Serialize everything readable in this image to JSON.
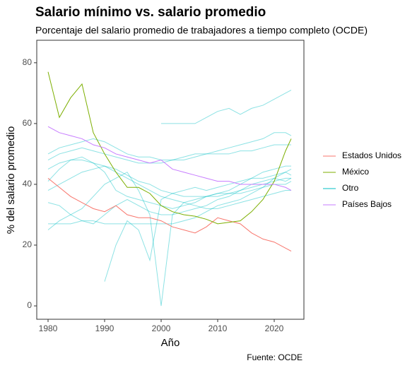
{
  "chart_data": {
    "type": "line",
    "title": "Salario mínimo vs. salario promedio",
    "subtitle": "Porcentaje del salario promedio de trabajadores a tiempo completo (OCDE)",
    "x_label": "Año",
    "y_label": "% del salario promedio",
    "caption": "Fuente: OCDE",
    "legend": "right",
    "xlim": [
      1978,
      2025.25
    ],
    "xticks": [
      1980,
      1990,
      2000,
      2010,
      2020
    ],
    "ylim": [
      -4.4,
      87.4
    ],
    "yticks": [
      0,
      20,
      40,
      60,
      80
    ],
    "x": [
      1980,
      1982,
      1984,
      1986,
      1988,
      1990,
      1992,
      1994,
      1996,
      1998,
      2000,
      2002,
      2004,
      2006,
      2008,
      2010,
      2012,
      2014,
      2016,
      2018,
      2020,
      2022,
      2023
    ],
    "series": [
      {
        "name": "Estados Unidos",
        "color": "#f8766d",
        "values": [
          42,
          39,
          36,
          34,
          32,
          31,
          33,
          30,
          29,
          29,
          28,
          26,
          25,
          24,
          26,
          29,
          28,
          27,
          24,
          22,
          21,
          19,
          18
        ]
      },
      {
        "name": "México",
        "color": "#7cae00",
        "values": [
          77,
          62,
          68.5,
          73,
          57,
          50,
          44,
          39,
          39,
          37,
          33,
          31,
          30,
          29.5,
          28.5,
          27,
          27.5,
          28,
          31,
          35,
          41,
          51,
          55
        ]
      },
      {
        "name": "Otro",
        "color": "#00bfc4",
        "values": [
          [
            48,
            50,
            51,
            52,
            51,
            50,
            49,
            48,
            47,
            47,
            47,
            48,
            48,
            49,
            50,
            50,
            50,
            51,
            51,
            52,
            53,
            53,
            53
          ],
          [
            27,
            27,
            27,
            28,
            28,
            27,
            27,
            27,
            27,
            27,
            27,
            27,
            28,
            29,
            31,
            33,
            34,
            35,
            37,
            39,
            42,
            44,
            45
          ],
          [
            null,
            null,
            null,
            null,
            null,
            null,
            null,
            null,
            null,
            null,
            60,
            60,
            60,
            60,
            62,
            64,
            65,
            63,
            65,
            66,
            68,
            70,
            71
          ],
          [
            41,
            45,
            48,
            49,
            47,
            44,
            38,
            36,
            35,
            34,
            33,
            32,
            33,
            34,
            36,
            37,
            38,
            40,
            42,
            44,
            45,
            46,
            46
          ],
          [
            null,
            null,
            null,
            null,
            null,
            8,
            20,
            28,
            25,
            15,
            35,
            37,
            38,
            39,
            38,
            39,
            40,
            41,
            42,
            42,
            43,
            44,
            43
          ],
          [
            25,
            28,
            30,
            32,
            36,
            40,
            42,
            44,
            38,
            30,
            0,
            30,
            34,
            35,
            36,
            37,
            37,
            38,
            39,
            40,
            41,
            42,
            42
          ],
          [
            50,
            52,
            53,
            54,
            55,
            54,
            52,
            50,
            49,
            49,
            48,
            48,
            49,
            50,
            50,
            51,
            52,
            53,
            54,
            55,
            57,
            57,
            56
          ],
          [
            38,
            40,
            42,
            44,
            45,
            46,
            45,
            43,
            41,
            40,
            38,
            37,
            36,
            36,
            36,
            36,
            37,
            37,
            38,
            39,
            40,
            40,
            41
          ],
          [
            34,
            33,
            30,
            28,
            27,
            30,
            33,
            35,
            33,
            31,
            30,
            30,
            31,
            32,
            33,
            35,
            36,
            38,
            40,
            41,
            42,
            41,
            42
          ],
          [
            45,
            47,
            48,
            48,
            47,
            46,
            44,
            42,
            40,
            38,
            36,
            35,
            34,
            33,
            32,
            32,
            33,
            34,
            35,
            36,
            37,
            38,
            38
          ]
        ]
      },
      {
        "name": "Países Bajos",
        "color": "#c77cff",
        "values": [
          59,
          57,
          56,
          55,
          53,
          52,
          50,
          49,
          48,
          47,
          48,
          45,
          44,
          43,
          42,
          41,
          41,
          40,
          40,
          40,
          40,
          39,
          38
        ]
      }
    ]
  }
}
